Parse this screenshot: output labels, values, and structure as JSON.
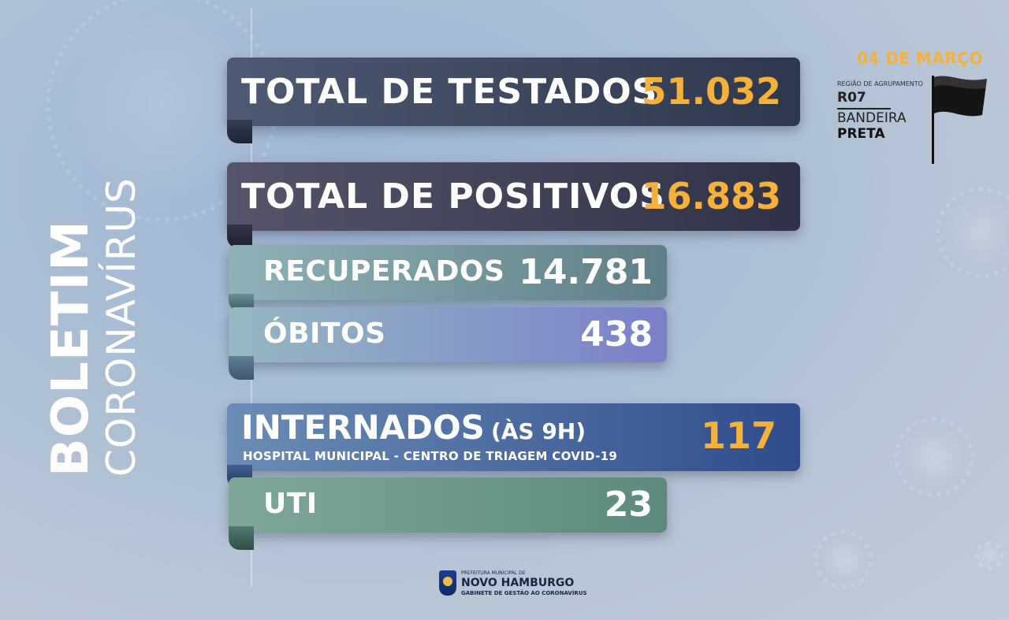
{
  "sidebar": {
    "title_bold": "BOLETIM",
    "title_light": "CORONAVÍRUS"
  },
  "stats": {
    "testados": {
      "label": "TOTAL DE TESTADOS",
      "value": "51.032"
    },
    "positivos": {
      "label": "TOTAL DE POSITIVOS",
      "value": "16.883"
    },
    "recuperados": {
      "label": "RECUPERADOS",
      "value": "14.781"
    },
    "obitos": {
      "label": "ÓBITOS",
      "value": "438"
    },
    "internados": {
      "label": "INTERNADOS",
      "time": "(ÀS 9H)",
      "subtitle": "HOSPITAL MUNICIPAL - CENTRO DE TRIAGEM COVID-19",
      "value": "117"
    },
    "uti": {
      "label": "UTI",
      "value": "23"
    }
  },
  "info": {
    "date": "04 DE MARÇO",
    "region_label": "REGIÃO DE AGRUPAMENTO",
    "region_code": "R07",
    "flag_label": "BANDEIRA",
    "flag_value": "PRETA",
    "flag_icon": "black-flag-icon"
  },
  "footer": {
    "line1": "PREFEITURA MUNICIPAL DE",
    "line2": "NOVO HAMBURGO",
    "line3": "GABINETE DE GESTÃO AO CORONAVÍRUS"
  },
  "colors": {
    "accent": "#f6b13a",
    "text": "#ffffff"
  }
}
